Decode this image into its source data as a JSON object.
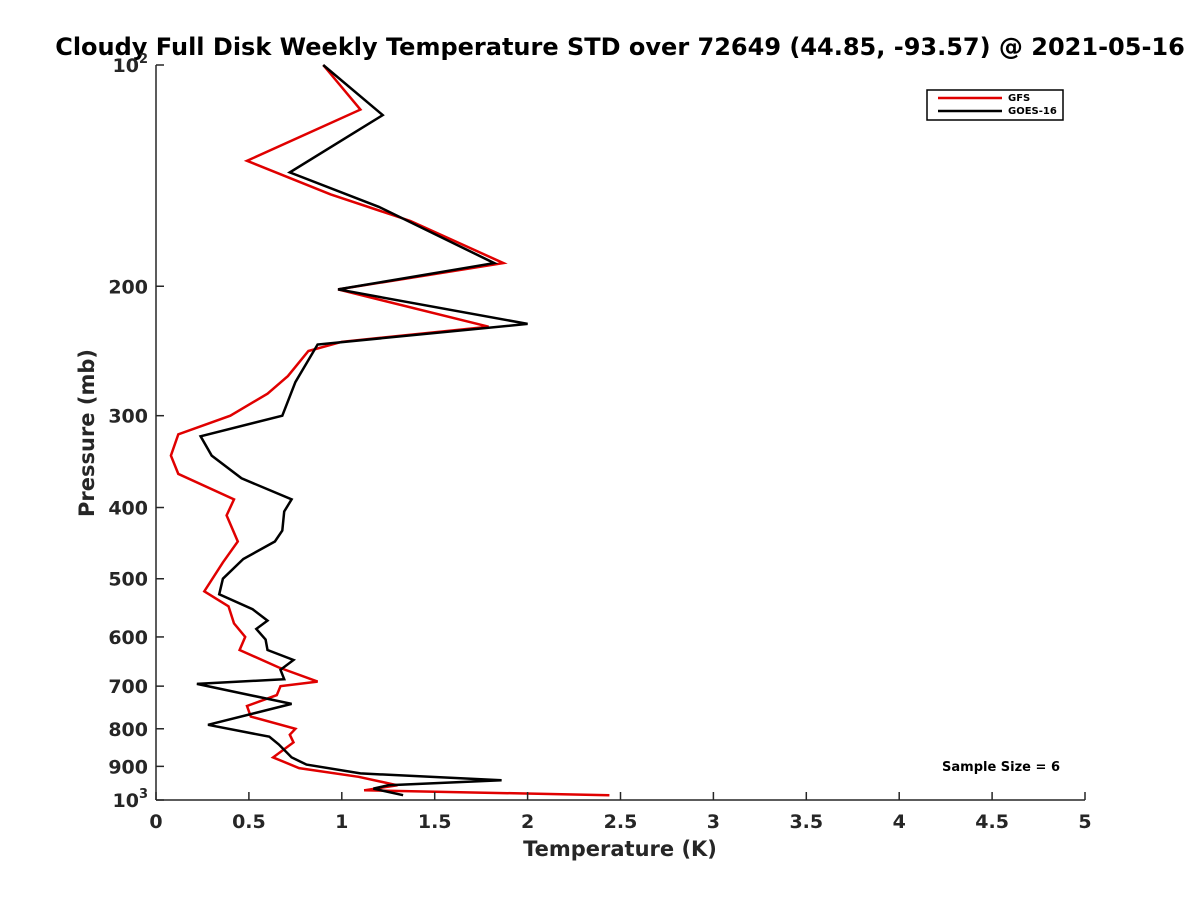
{
  "chart_data": {
    "type": "line",
    "title": "Cloudy Full Disk Weekly Temperature STD over 72649 (44.85, -93.57) @ 2021-05-16",
    "xlabel": "Temperature (K)",
    "ylabel": "Pressure (mb)",
    "xlim": [
      0,
      5
    ],
    "ylim": [
      1000,
      100
    ],
    "y_scale": "log",
    "y_reversed": true,
    "grid": false,
    "x_ticks": [
      "0",
      "0.5",
      "1",
      "1.5",
      "2",
      "2.5",
      "3",
      "3.5",
      "4",
      "4.5",
      "5"
    ],
    "y_ticks": [
      {
        "value": 100,
        "label": "10",
        "exp": "2"
      },
      {
        "value": 200,
        "label": "200",
        "exp": ""
      },
      {
        "value": 300,
        "label": "300",
        "exp": ""
      },
      {
        "value": 400,
        "label": "400",
        "exp": ""
      },
      {
        "value": 500,
        "label": "500",
        "exp": ""
      },
      {
        "value": 600,
        "label": "600",
        "exp": ""
      },
      {
        "value": 700,
        "label": "700",
        "exp": ""
      },
      {
        "value": 800,
        "label": "800",
        "exp": ""
      },
      {
        "value": 900,
        "label": "900",
        "exp": ""
      },
      {
        "value": 1000,
        "label": "10",
        "exp": "3"
      }
    ],
    "legend_position": "top-right",
    "annotation": "Sample Size = 6",
    "series": [
      {
        "name": "GFS",
        "color": "#e00000",
        "points": [
          [
            0.9,
            100
          ],
          [
            1.1,
            115
          ],
          [
            0.49,
            135
          ],
          [
            0.94,
            150
          ],
          [
            1.37,
            163
          ],
          [
            1.87,
            186
          ],
          [
            0.98,
            202
          ],
          [
            1.79,
            227
          ],
          [
            1.0,
            238
          ],
          [
            0.82,
            245
          ],
          [
            0.71,
            265
          ],
          [
            0.6,
            280
          ],
          [
            0.4,
            300
          ],
          [
            0.12,
            318
          ],
          [
            0.08,
            340
          ],
          [
            0.12,
            360
          ],
          [
            0.42,
            390
          ],
          [
            0.38,
            410
          ],
          [
            0.44,
            445
          ],
          [
            0.36,
            475
          ],
          [
            0.26,
            520
          ],
          [
            0.39,
            545
          ],
          [
            0.42,
            575
          ],
          [
            0.48,
            600
          ],
          [
            0.45,
            625
          ],
          [
            0.66,
            660
          ],
          [
            0.87,
            690
          ],
          [
            0.67,
            700
          ],
          [
            0.65,
            720
          ],
          [
            0.49,
            745
          ],
          [
            0.51,
            770
          ],
          [
            0.75,
            800
          ],
          [
            0.72,
            815
          ],
          [
            0.74,
            835
          ],
          [
            0.63,
            875
          ],
          [
            0.77,
            905
          ],
          [
            1.09,
            930
          ],
          [
            1.3,
            955
          ],
          [
            1.12,
            970
          ],
          [
            2.44,
            985
          ]
        ]
      },
      {
        "name": "GOES-16",
        "color": "#000000",
        "points": [
          [
            0.9,
            100
          ],
          [
            1.22,
            117
          ],
          [
            0.72,
            140
          ],
          [
            1.2,
            156
          ],
          [
            1.82,
            186
          ],
          [
            0.98,
            202
          ],
          [
            2.0,
            225
          ],
          [
            0.87,
            240
          ],
          [
            0.75,
            270
          ],
          [
            0.68,
            300
          ],
          [
            0.24,
            320
          ],
          [
            0.3,
            340
          ],
          [
            0.46,
            365
          ],
          [
            0.73,
            390
          ],
          [
            0.69,
            405
          ],
          [
            0.68,
            430
          ],
          [
            0.64,
            445
          ],
          [
            0.47,
            470
          ],
          [
            0.36,
            500
          ],
          [
            0.34,
            525
          ],
          [
            0.52,
            550
          ],
          [
            0.6,
            570
          ],
          [
            0.54,
            585
          ],
          [
            0.59,
            605
          ],
          [
            0.6,
            625
          ],
          [
            0.74,
            645
          ],
          [
            0.67,
            665
          ],
          [
            0.69,
            685
          ],
          [
            0.22,
            695
          ],
          [
            0.73,
            740
          ],
          [
            0.28,
            790
          ],
          [
            0.61,
            820
          ],
          [
            0.66,
            840
          ],
          [
            0.73,
            875
          ],
          [
            0.81,
            895
          ],
          [
            1.1,
            920
          ],
          [
            1.86,
            940
          ],
          [
            1.25,
            955
          ],
          [
            1.17,
            965
          ],
          [
            1.33,
            985
          ]
        ]
      }
    ]
  }
}
